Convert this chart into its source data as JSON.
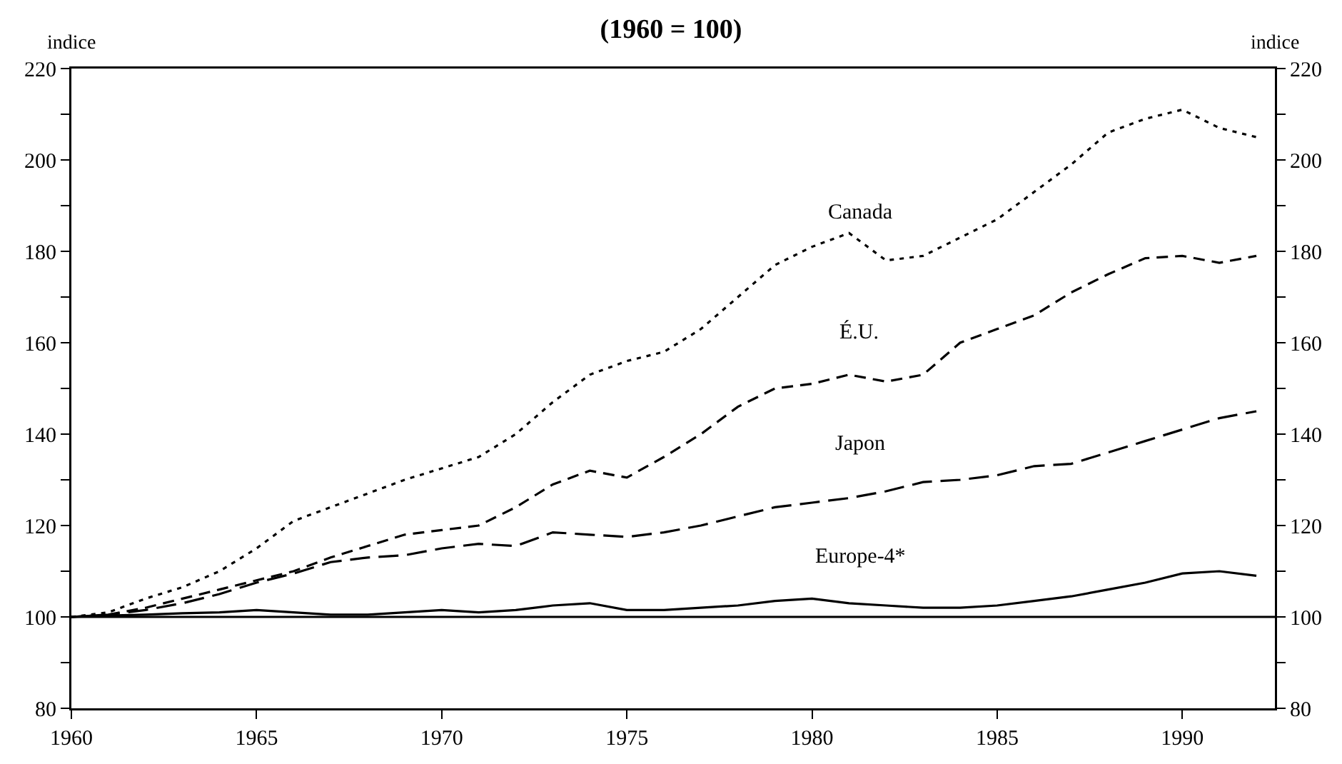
{
  "chart_data": {
    "type": "line",
    "title": "(1960 = 100)",
    "ylabel": "indice",
    "y2label": "indice",
    "x": [
      1960,
      1961,
      1962,
      1963,
      1964,
      1965,
      1966,
      1967,
      1968,
      1969,
      1970,
      1971,
      1972,
      1973,
      1974,
      1975,
      1976,
      1977,
      1978,
      1979,
      1980,
      1981,
      1982,
      1983,
      1984,
      1985,
      1986,
      1987,
      1988,
      1989,
      1990,
      1991,
      1992
    ],
    "series": [
      {
        "name": "Canada",
        "color": "#000000",
        "line_style": "dashed",
        "values": [
          100,
          101,
          104,
          106.5,
          110,
          115,
          121,
          124,
          127,
          130,
          132.5,
          135,
          140,
          147,
          153,
          156,
          158,
          163,
          170,
          177,
          181,
          184,
          178,
          179,
          183,
          187,
          193,
          199,
          206,
          209,
          211,
          207,
          205
        ]
      },
      {
        "name": "É.U.",
        "color": "#000000",
        "line_style": "dashed",
        "values": [
          100,
          100.5,
          102,
          104,
          106,
          108,
          110,
          113,
          115.5,
          118,
          119,
          120,
          124,
          129,
          132,
          130.5,
          135,
          140,
          146,
          150,
          151,
          153,
          151.5,
          153,
          160,
          163,
          166,
          171,
          175,
          178.5,
          179,
          177.5,
          179
        ]
      },
      {
        "name": "Japon",
        "color": "#000000",
        "line_style": "dashed",
        "values": [
          100,
          100.5,
          101.5,
          103,
          105,
          107.5,
          109.5,
          112,
          113,
          113.5,
          115,
          116,
          115.5,
          118.5,
          118,
          117.5,
          118.5,
          120,
          122,
          124,
          125,
          126,
          127.5,
          129.5,
          130,
          131,
          133,
          133.5,
          136,
          138.5,
          141,
          143.5,
          145
        ]
      },
      {
        "name": "Europe-4*",
        "color": "#000000",
        "line_style": "solid",
        "values": [
          100,
          100.3,
          100.5,
          100.8,
          101,
          101.5,
          101,
          100.5,
          100.5,
          101,
          101.5,
          101,
          101.5,
          102.5,
          103,
          101.5,
          101.5,
          102,
          102.5,
          103.5,
          104,
          103,
          102.5,
          102,
          102,
          102.5,
          103.5,
          104.5,
          106,
          107.5,
          109.5,
          110,
          109
        ]
      }
    ],
    "xlim": [
      1960,
      1992.5
    ],
    "xticks": [
      1960,
      1965,
      1970,
      1975,
      1980,
      1985,
      1990
    ],
    "ylim": [
      80,
      220
    ],
    "yticks": [
      80,
      {
        "value": 90,
        "label": null
      },
      100,
      {
        "value": 110,
        "label": null
      },
      120,
      {
        "value": 130,
        "label": null
      },
      140,
      {
        "value": 150,
        "label": null
      },
      160,
      {
        "value": 170,
        "label": null
      },
      180,
      {
        "value": 190,
        "label": null
      },
      200,
      {
        "value": 210,
        "label": null
      },
      220
    ],
    "y2lim": [
      80,
      220
    ],
    "y2ticks": [
      80,
      {
        "value": 90,
        "label": null
      },
      100,
      {
        "value": 110,
        "label": null
      },
      120,
      {
        "value": 130,
        "label": null
      },
      140,
      {
        "value": 150,
        "label": null
      },
      160,
      {
        "value": 170,
        "label": null
      },
      180,
      {
        "value": 190,
        "label": null
      },
      200,
      {
        "value": 210,
        "label": null
      },
      220
    ],
    "ref_lines": [
      {
        "axis": "y",
        "value": 100,
        "color": "#000000"
      }
    ],
    "legend": false,
    "grid": false,
    "marker": "none"
  }
}
